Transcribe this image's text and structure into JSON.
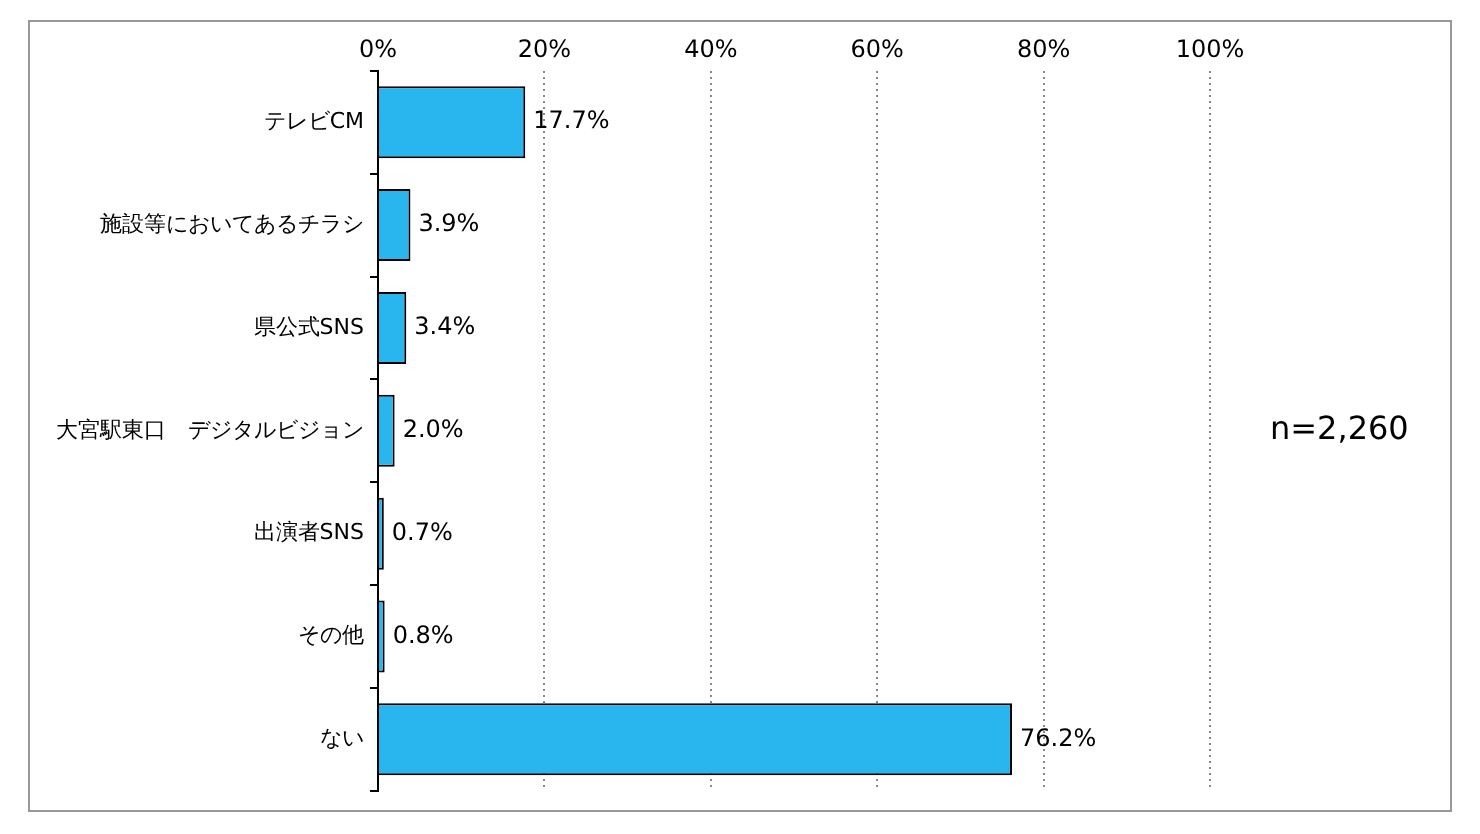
{
  "chart_data": {
    "type": "bar",
    "orientation": "horizontal",
    "categories": [
      "テレビCM",
      "施設等においてあるチラシ",
      "県公式SNS",
      "大宮駅東口　デジタルビジョン",
      "出演者SNS",
      "その他",
      "ない"
    ],
    "values": [
      17.7,
      3.9,
      3.4,
      2.0,
      0.7,
      0.8,
      76.2
    ],
    "value_labels": [
      "17.7%",
      "3.9%",
      "3.4%",
      "2.0%",
      "0.7%",
      "0.8%",
      "76.2%"
    ],
    "color": "#29b6ef",
    "xlim": [
      0,
      100
    ],
    "xticks": [
      {
        "value": 0,
        "label": "0%"
      },
      {
        "value": 20,
        "label": "20%"
      },
      {
        "value": 40,
        "label": "40%"
      },
      {
        "value": 60,
        "label": "60%"
      },
      {
        "value": 80,
        "label": "80%"
      },
      {
        "value": 100,
        "label": "100%"
      }
    ],
    "grid": "x",
    "annotations": [
      "n=2,260"
    ]
  }
}
